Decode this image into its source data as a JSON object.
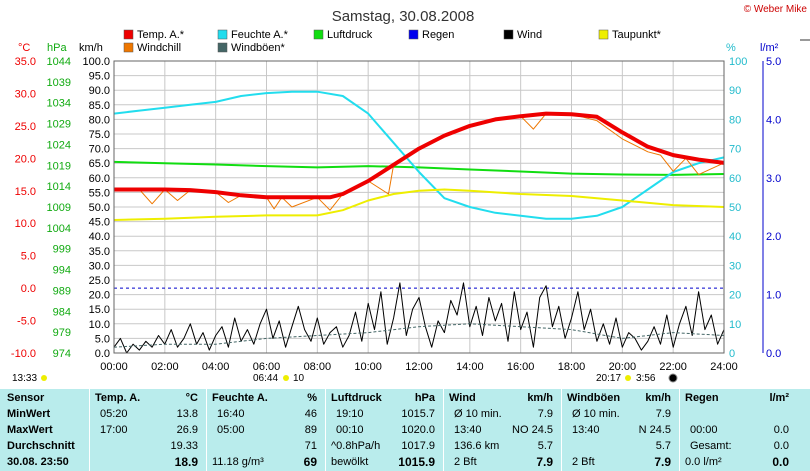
{
  "title": "Samstag, 30.08.2008",
  "copyright": "© Weber Mike",
  "colors": {
    "temp": "#ee0000",
    "windchill": "#ee7700",
    "humidity": "#22ddee",
    "pressure": "#11dd11",
    "rain": "#0000ee",
    "wind": "#000000",
    "dewpoint": "#eeee00",
    "gust": "#446666",
    "stats_bg": "#b9ecec"
  },
  "axes": {
    "temp_unit": "°C",
    "temp_ticks": [
      "35.0",
      "30.0",
      "25.0",
      "20.0",
      "15.0",
      "10.0",
      "5.0",
      "0.0",
      "-5.0",
      "-10.0"
    ],
    "pressure_unit": "hPa",
    "pressure_ticks": [
      "1044",
      "1039",
      "1034",
      "1029",
      "1024",
      "1019",
      "1014",
      "1009",
      "1004",
      "999",
      "994",
      "989",
      "984",
      "979",
      "974"
    ],
    "wind_unit": "km/h",
    "wind_ticks": [
      "100.0",
      "95.0",
      "90.0",
      "85.0",
      "80.0",
      "75.0",
      "70.0",
      "65.0",
      "60.0",
      "55.0",
      "50.0",
      "45.0",
      "40.0",
      "35.0",
      "30.0",
      "25.0",
      "20.0",
      "15.0",
      "10.0",
      "5.0",
      "0.0"
    ],
    "humidity_unit": "%",
    "humidity_ticks": [
      "100",
      "90",
      "80",
      "70",
      "60",
      "50",
      "40",
      "30",
      "20",
      "10",
      "0"
    ],
    "rain_unit": "l/m²",
    "rain_ticks": [
      "5.0",
      "4.0",
      "3.0",
      "2.0",
      "1.0",
      "0.0"
    ],
    "x_ticks": [
      "00:00",
      "02:00",
      "04:00",
      "06:00",
      "08:00",
      "10:00",
      "12:00",
      "14:00",
      "16:00",
      "18:00",
      "20:00",
      "22:00",
      "24:00"
    ]
  },
  "legend": [
    {
      "label": "Temp. A.*",
      "color": "#ee0000"
    },
    {
      "label": "Feuchte A.*",
      "color": "#22ddee"
    },
    {
      "label": "Luftdruck",
      "color": "#11dd11"
    },
    {
      "label": "Regen",
      "color": "#0000ee"
    },
    {
      "label": "Wind",
      "color": "#000000"
    },
    {
      "label": "Taupunkt*",
      "color": "#eeee00"
    },
    {
      "label": "Windchill",
      "color": "#ee7700"
    },
    {
      "label": "Windböen*",
      "color": "#446666"
    }
  ],
  "sun": {
    "sunrise": "06:44",
    "sunset": "20:17",
    "day_length": "13:33",
    "moon": "10",
    "moon2": "3:56"
  },
  "chart_data": {
    "type": "line",
    "x_unit": "hours",
    "xlim": [
      0,
      24
    ],
    "series": [
      {
        "name": "Temp. A.*",
        "axis": "°C",
        "ylim": [
          -10,
          35
        ],
        "x": [
          0,
          1,
          2,
          3,
          4,
          5,
          6,
          7,
          8,
          8.5,
          9,
          10,
          11,
          12,
          13,
          14,
          15,
          16,
          17,
          18,
          19,
          20,
          21,
          22,
          23,
          24
        ],
        "values": [
          15.2,
          15.2,
          15.2,
          15.1,
          14.8,
          14.3,
          14.0,
          14.0,
          14.0,
          14.0,
          14.5,
          16.5,
          19.0,
          21.5,
          23.5,
          25.0,
          26.0,
          26.5,
          26.9,
          26.8,
          26.4,
          24.0,
          21.8,
          20.5,
          19.8,
          19.3
        ]
      },
      {
        "name": "Windchill",
        "axis": "°C",
        "ylim": [
          -10,
          35
        ],
        "x": [
          0,
          1,
          1.5,
          2,
          2.5,
          3,
          4,
          4.5,
          5,
          6,
          6.3,
          6.6,
          7,
          8,
          8.5,
          9,
          10,
          10.8,
          11,
          12,
          13,
          14,
          15,
          16,
          16.5,
          17,
          18,
          19,
          20,
          21,
          21.5,
          22,
          22.5,
          23,
          24
        ],
        "values": [
          15.2,
          15.2,
          13.0,
          15.2,
          13.5,
          15.1,
          14.8,
          13.2,
          14.3,
          14.0,
          12.2,
          14.0,
          12.5,
          14.0,
          12.0,
          14.5,
          16.5,
          14.5,
          19.0,
          21.5,
          23.5,
          25.0,
          26.0,
          26.5,
          24.5,
          26.9,
          26.8,
          25.8,
          23.0,
          21.0,
          20.5,
          18.0,
          20.0,
          17.5,
          19.3
        ]
      },
      {
        "name": "Feuchte A.*",
        "axis": "%",
        "ylim": [
          0,
          100
        ],
        "x": [
          0,
          1,
          2,
          3,
          4,
          5,
          6,
          7,
          8,
          9,
          10,
          11,
          12,
          13,
          14,
          15,
          16,
          17,
          18,
          19,
          20,
          21,
          22,
          23,
          24
        ],
        "values": [
          82,
          83,
          84,
          85,
          86,
          88,
          89,
          89.5,
          89.5,
          88,
          82,
          72,
          62,
          53,
          50,
          48,
          47,
          46,
          46,
          47,
          50,
          56,
          62,
          65,
          67
        ]
      },
      {
        "name": "Luftdruck",
        "axis": "hPa",
        "ylim": [
          974,
          1044
        ],
        "x": [
          0,
          2,
          4,
          6,
          8,
          10,
          12,
          14,
          16,
          18,
          20,
          22,
          24
        ],
        "values": [
          1019.8,
          1019.5,
          1019.2,
          1018.8,
          1018.5,
          1018.8,
          1018.5,
          1018.0,
          1017.5,
          1017.0,
          1016.8,
          1016.7,
          1016.9
        ]
      },
      {
        "name": "Taupunkt*",
        "axis": "°C",
        "ylim": [
          -10,
          35
        ],
        "x": [
          0,
          2,
          4,
          6,
          8,
          9,
          10,
          11,
          12,
          13,
          14,
          16,
          18,
          20,
          22,
          24
        ],
        "values": [
          10.5,
          10.7,
          11.0,
          11.2,
          11.2,
          12.0,
          13.5,
          14.5,
          15.0,
          15.2,
          15.0,
          14.5,
          14.2,
          13.5,
          12.8,
          12.5
        ]
      },
      {
        "name": "Wind",
        "axis": "km/h",
        "ylim": [
          0,
          100
        ],
        "x": [
          0,
          0.25,
          0.5,
          0.75,
          1,
          1.25,
          1.5,
          1.75,
          2,
          2.25,
          2.5,
          2.75,
          3,
          3.25,
          3.5,
          3.75,
          4,
          4.25,
          4.5,
          4.75,
          5,
          5.25,
          5.5,
          5.75,
          6,
          6.25,
          6.5,
          6.75,
          7,
          7.25,
          7.5,
          7.75,
          8,
          8.25,
          8.5,
          8.75,
          9,
          9.25,
          9.5,
          9.75,
          10,
          10.25,
          10.5,
          10.75,
          11,
          11.25,
          11.5,
          11.75,
          12,
          12.25,
          12.5,
          12.75,
          13,
          13.25,
          13.5,
          13.75,
          14,
          14.25,
          14.5,
          14.75,
          15,
          15.25,
          15.5,
          15.75,
          16,
          16.25,
          16.5,
          16.75,
          17,
          17.25,
          17.5,
          17.75,
          18,
          18.25,
          18.5,
          18.75,
          19,
          19.25,
          19.5,
          19.75,
          20,
          20.25,
          20.5,
          20.75,
          21,
          21.25,
          21.5,
          21.75,
          22,
          22.25,
          22.5,
          22.75,
          23,
          23.25,
          23.5,
          23.75,
          24
        ],
        "values": [
          2,
          5,
          0,
          3,
          1,
          4,
          2,
          6,
          3,
          8,
          2,
          5,
          10,
          3,
          7,
          1,
          6,
          9,
          2,
          12,
          4,
          8,
          3,
          10,
          15,
          5,
          11,
          2,
          9,
          16,
          8,
          4,
          12,
          3,
          7,
          9,
          2,
          6,
          14,
          4,
          17,
          8,
          21,
          3,
          12,
          24,
          6,
          15,
          19,
          9,
          2,
          11,
          7,
          18,
          13,
          24,
          9,
          16,
          6,
          19,
          11,
          17,
          4,
          21,
          8,
          14,
          2,
          19,
          23,
          9,
          16,
          5,
          12,
          21,
          8,
          15,
          4,
          10,
          3,
          12,
          2,
          7,
          5,
          1,
          4,
          9,
          3,
          13,
          2,
          10,
          16,
          6,
          21,
          8,
          13,
          3,
          8
        ]
      },
      {
        "name": "Windböen*",
        "axis": "km/h",
        "ylim": [
          0,
          100
        ],
        "x": [
          0,
          2,
          4,
          6,
          8,
          10,
          12,
          14,
          16,
          18,
          20,
          22,
          24
        ],
        "values": [
          2,
          3,
          3,
          5,
          6,
          7,
          9,
          10,
          9,
          8,
          5,
          7,
          6
        ]
      }
    ]
  },
  "stats": {
    "rows": [
      "Sensor",
      "MinWert",
      "MaxWert",
      "Durchschnitt",
      "30.08.  23:50"
    ],
    "temp": {
      "title": "Temp. A.",
      "unit": "°C",
      "min_time": "05:20",
      "min": "13.8",
      "max_time": "17:00",
      "max": "26.9",
      "avg": "19.33",
      "current": "18.9"
    },
    "humidity": {
      "title": "Feuchte A.",
      "unit": "%",
      "min_time": "16:40",
      "min": "46",
      "max_time": "05:00",
      "max": "89",
      "avg": "71",
      "current_extra": "11.18 g/m³",
      "current": "69"
    },
    "pressure": {
      "title": "Luftdruck",
      "unit": "hPa",
      "min_time": "19:10",
      "min": "1015.7",
      "max_time": "00:10",
      "max": "1020.0",
      "avg_label": "^0.8hPa/h",
      "avg": "1017.9",
      "current_label": "bewölkt",
      "current": "1015.9"
    },
    "wind": {
      "title": "Wind",
      "unit": "km/h",
      "r1_label": "Ø 10 min.",
      "r1": "7.9",
      "r2_time": "13:40",
      "r2_dir": "NO 24.5",
      "r3_label": "136.6 km",
      "r3": "5.7",
      "r4_label": "2 Bft",
      "r4": "7.9"
    },
    "gust": {
      "title": "Windböen",
      "unit": "km/h",
      "r1_label": "Ø 10 min.",
      "r1": "7.9",
      "r2_time": "13:40",
      "r2_dir": "N 24.5",
      "r3": "5.7",
      "r4_label": "2 Bft",
      "r4": "7.9"
    },
    "rain": {
      "title": "Regen",
      "unit": "l/m²",
      "r2_time": "00:00",
      "r2": "0.0",
      "r3_label": "Gesamt:",
      "r3": "0.0",
      "r4_label": "0.0 l/m²",
      "r4": "0.0"
    }
  }
}
